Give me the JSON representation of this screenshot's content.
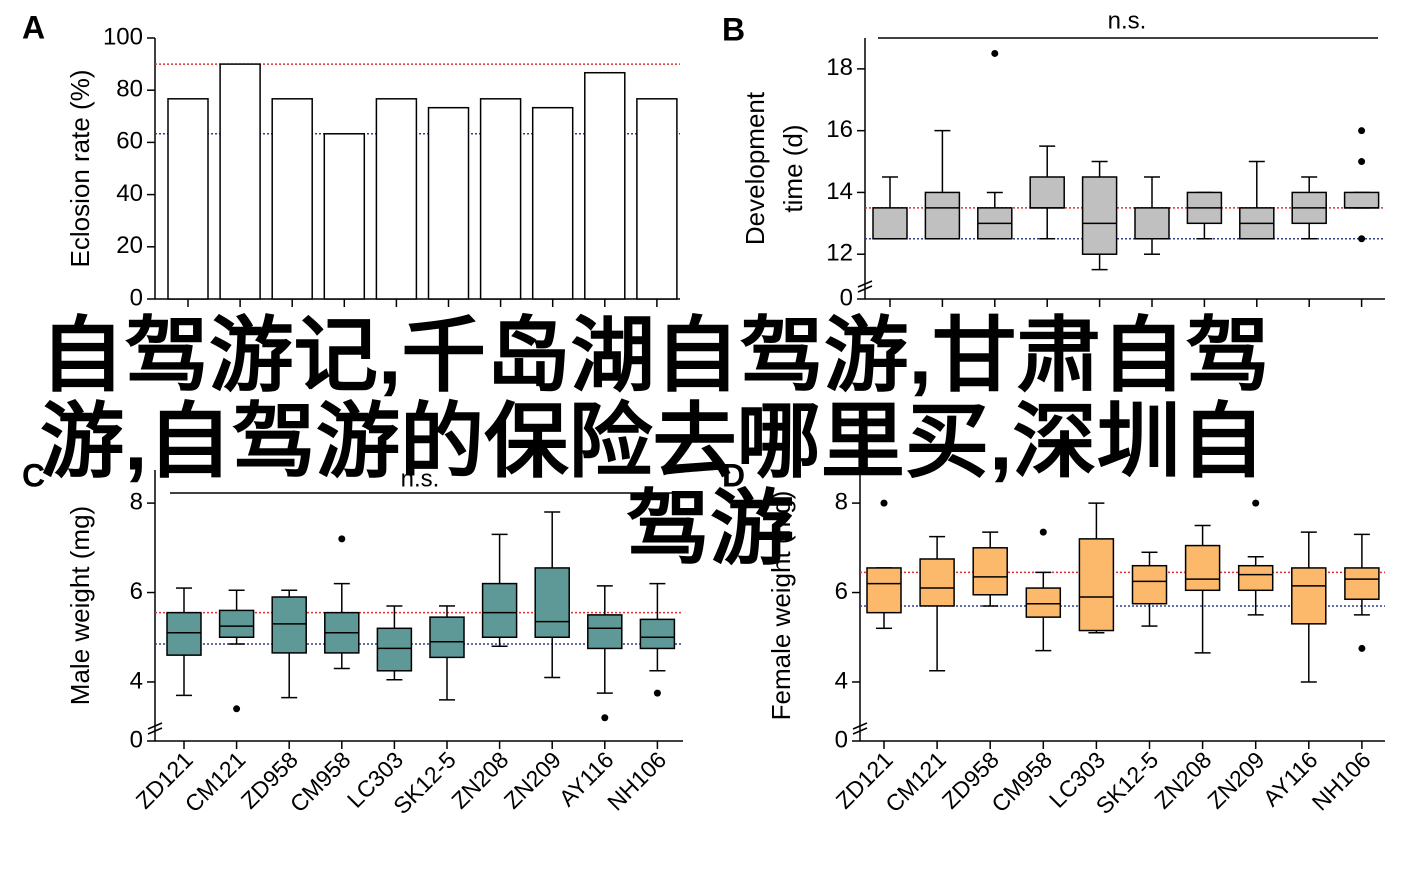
{
  "chart_data": [
    {
      "type": "bar",
      "panel": "A",
      "ylabel": [
        "Eclosion rate (%)"
      ],
      "categories": [
        "ZD121",
        "CM121",
        "ZD958",
        "CM958",
        "LC303",
        "SK12-5",
        "ZN208",
        "ZN209",
        "AY116",
        "NH106"
      ],
      "category_colors": [
        "#000000",
        "#b22222",
        "#000000",
        "#b22222",
        "#000000",
        "#b22222",
        "#000000",
        "#000000",
        "#000000",
        "#000000"
      ],
      "values": [
        76.7,
        90,
        76.7,
        63.3,
        76.7,
        73.3,
        76.7,
        73.3,
        86.7,
        76.7
      ],
      "color": "#ffffff",
      "reference_lines": [
        {
          "value": 90,
          "color": "#e03030"
        },
        {
          "value": 63.3,
          "color": "#2f3f8f"
        }
      ],
      "ylim": [
        0,
        100
      ],
      "yticks": [
        0,
        20,
        40,
        60,
        80,
        100
      ],
      "show_category_labels": false
    },
    {
      "type": "box",
      "panel": "B",
      "ylabel": [
        "Development",
        "time (d)"
      ],
      "annotation": "n.s.",
      "categories": [
        "ZD121",
        "CM121",
        "ZD958",
        "CM958",
        "LC303",
        "SK12-5",
        "ZN208",
        "ZN209",
        "AY116",
        "NH106"
      ],
      "category_colors": [
        "#000000",
        "#b22222",
        "#000000",
        "#b22222",
        "#000000",
        "#b22222",
        "#000000",
        "#000000",
        "#000000",
        "#000000"
      ],
      "color": "#c0c0c0",
      "boxes": [
        {
          "whislo": 12.5,
          "q1": 12.5,
          "med": 12.5,
          "q3": 13.5,
          "whishi": 14.5,
          "fliers": []
        },
        {
          "whislo": 12.5,
          "q1": 12.5,
          "med": 13.5,
          "q3": 14,
          "whishi": 16,
          "fliers": []
        },
        {
          "whislo": 12.5,
          "q1": 12.5,
          "med": 13,
          "q3": 13.5,
          "whishi": 14,
          "fliers": [
            18.5
          ]
        },
        {
          "whislo": 12.5,
          "q1": 13.5,
          "med": 13.5,
          "q3": 14.5,
          "whishi": 15.5,
          "fliers": []
        },
        {
          "whislo": 11.5,
          "q1": 12,
          "med": 13,
          "q3": 14.5,
          "whishi": 15,
          "fliers": []
        },
        {
          "whislo": 12,
          "q1": 12.5,
          "med": 12.5,
          "q3": 13.5,
          "whishi": 14.5,
          "fliers": []
        },
        {
          "whislo": 12.5,
          "q1": 13,
          "med": 13.5,
          "q3": 14,
          "whishi": 14,
          "fliers": []
        },
        {
          "whislo": 12.5,
          "q1": 12.5,
          "med": 13,
          "q3": 13.5,
          "whishi": 15,
          "fliers": []
        },
        {
          "whislo": 12.5,
          "q1": 13,
          "med": 13.5,
          "q3": 14,
          "whishi": 14.5,
          "fliers": []
        },
        {
          "whislo": 13.5,
          "q1": 13.5,
          "med": 13.5,
          "q3": 14,
          "whishi": 14,
          "fliers": [
            16,
            15,
            12.5
          ]
        }
      ],
      "reference_lines": [
        {
          "value": 13.5,
          "color": "#e03030"
        },
        {
          "value": 12.5,
          "color": "#2f3f8f"
        }
      ],
      "ylim": [
        10.55,
        19
      ],
      "yticks": [
        12,
        14,
        16,
        18
      ],
      "break_tick": 0,
      "show_category_labels": false
    },
    {
      "type": "box",
      "panel": "C",
      "ylabel": [
        "Male weight (mg)"
      ],
      "annotation": "n.s.",
      "categories": [
        "ZD121",
        "CM121",
        "ZD958",
        "CM958",
        "LC303",
        "SK12-5",
        "ZN208",
        "ZN209",
        "AY116",
        "NH106"
      ],
      "category_colors": [
        "#000000",
        "#b22222",
        "#000000",
        "#b22222",
        "#000000",
        "#b22222",
        "#000000",
        "#000000",
        "#000000",
        "#000000"
      ],
      "color": "#5f9997",
      "boxes": [
        {
          "whislo": 3.7,
          "q1": 4.6,
          "med": 5.1,
          "q3": 5.55,
          "whishi": 6.1,
          "fliers": []
        },
        {
          "whislo": 4.85,
          "q1": 5,
          "med": 5.25,
          "q3": 5.6,
          "whishi": 6.05,
          "fliers": [
            3.4
          ]
        },
        {
          "whislo": 3.65,
          "q1": 4.65,
          "med": 5.3,
          "q3": 5.9,
          "whishi": 6.05,
          "fliers": []
        },
        {
          "whislo": 4.3,
          "q1": 4.65,
          "med": 5.1,
          "q3": 5.55,
          "whishi": 6.2,
          "fliers": [
            7.2
          ]
        },
        {
          "whislo": 4.05,
          "q1": 4.25,
          "med": 4.75,
          "q3": 5.2,
          "whishi": 5.7,
          "fliers": []
        },
        {
          "whislo": 3.6,
          "q1": 4.55,
          "med": 4.9,
          "q3": 5.45,
          "whishi": 5.7,
          "fliers": []
        },
        {
          "whislo": 4.8,
          "q1": 5,
          "med": 5.55,
          "q3": 6.2,
          "whishi": 7.3,
          "fliers": []
        },
        {
          "whislo": 4.1,
          "q1": 5,
          "med": 5.35,
          "q3": 6.55,
          "whishi": 7.8,
          "fliers": []
        },
        {
          "whislo": 3.75,
          "q1": 4.75,
          "med": 5.2,
          "q3": 5.5,
          "whishi": 6.15,
          "fliers": [
            3.2
          ]
        },
        {
          "whislo": 4.25,
          "q1": 4.75,
          "med": 5,
          "q3": 5.4,
          "whishi": 6.2,
          "fliers": [
            3.75
          ]
        }
      ],
      "reference_lines": [
        {
          "value": 5.55,
          "color": "#e03030"
        },
        {
          "value": 4.85,
          "color": "#2f3f8f"
        }
      ],
      "ylim": [
        2.68,
        8.74
      ],
      "yticks": [
        4,
        6,
        8
      ],
      "break_tick": 0,
      "show_category_labels": true
    },
    {
      "type": "box",
      "panel": "D",
      "ylabel": [
        "Female weight (mg)"
      ],
      "categories": [
        "ZD121",
        "CM121",
        "ZD958",
        "CM958",
        "LC303",
        "SK12-5",
        "ZN208",
        "ZN209",
        "AY116",
        "NH106"
      ],
      "category_colors": [
        "#000000",
        "#b22222",
        "#000000",
        "#b22222",
        "#000000",
        "#b22222",
        "#000000",
        "#000000",
        "#000000",
        "#000000"
      ],
      "color": "#fdb96b",
      "boxes": [
        {
          "whislo": 5.2,
          "q1": 5.55,
          "med": 6.2,
          "q3": 6.55,
          "whishi": 6.55,
          "fliers": [
            8
          ]
        },
        {
          "whislo": 4.25,
          "q1": 5.7,
          "med": 6.1,
          "q3": 6.75,
          "whishi": 7.25,
          "fliers": []
        },
        {
          "whislo": 5.7,
          "q1": 5.95,
          "med": 6.35,
          "q3": 7,
          "whishi": 7.35,
          "fliers": []
        },
        {
          "whislo": 4.7,
          "q1": 5.45,
          "med": 5.75,
          "q3": 6.1,
          "whishi": 6.45,
          "fliers": [
            7.35
          ]
        },
        {
          "whislo": 5.1,
          "q1": 5.15,
          "med": 5.9,
          "q3": 7.2,
          "whishi": 8,
          "fliers": []
        },
        {
          "whislo": 5.25,
          "q1": 5.75,
          "med": 6.25,
          "q3": 6.6,
          "whishi": 6.9,
          "fliers": []
        },
        {
          "whislo": 4.65,
          "q1": 6.05,
          "med": 6.3,
          "q3": 7.05,
          "whishi": 7.5,
          "fliers": []
        },
        {
          "whislo": 5.5,
          "q1": 6.05,
          "med": 6.4,
          "q3": 6.6,
          "whishi": 6.8,
          "fliers": [
            8
          ]
        },
        {
          "whislo": 4,
          "q1": 5.3,
          "med": 6.15,
          "q3": 6.55,
          "whishi": 7.35,
          "fliers": []
        },
        {
          "whislo": 5.5,
          "q1": 5.85,
          "med": 6.3,
          "q3": 6.55,
          "whishi": 7.3,
          "fliers": [
            4.75
          ]
        }
      ],
      "reference_lines": [
        {
          "value": 6.45,
          "color": "#e03030"
        },
        {
          "value": 5.7,
          "color": "#2f3f8f"
        }
      ],
      "ylim": [
        2.68,
        8.74
      ],
      "yticks": [
        4,
        6,
        8
      ],
      "break_tick": 0,
      "show_category_labels": true
    }
  ],
  "watermark": {
    "lines": [
      "自驾游记,千岛湖自驾游,甘肃自驾",
      "游,自驾游的保险去哪里买,深圳自",
      "驾游"
    ],
    "color": "#8e3ee6"
  }
}
